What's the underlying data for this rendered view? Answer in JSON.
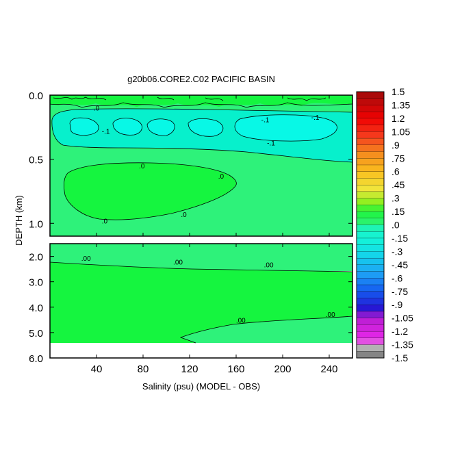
{
  "chart_data": {
    "type": "heatmap",
    "title": "g20b06.CORE2.C02 PACIFIC BASIN",
    "xlabel": "Salinity (psu) (MODEL - OBS)",
    "ylabel": "DEPTH (km)",
    "x_ticks": [
      "40",
      "80",
      "120",
      "160",
      "200",
      "240"
    ],
    "x_tick_values": [
      40,
      80,
      120,
      160,
      200,
      240
    ],
    "xlim": [
      0,
      260
    ],
    "upper_panel": {
      "ylim": [
        0.0,
        1.1
      ],
      "y_ticks": [
        "0.0",
        "0.5",
        "1.0"
      ],
      "y_tick_values": [
        0.0,
        0.5,
        1.0
      ],
      "contour_labels": [
        {
          "text": ".0",
          "x": 40,
          "y": 0.1
        },
        {
          "text": "-.1",
          "x": 48,
          "y": 0.28
        },
        {
          "text": "-.1",
          "x": 185,
          "y": 0.19
        },
        {
          "text": "-.1",
          "x": 228,
          "y": 0.17
        },
        {
          "text": "-.1",
          "x": 190,
          "y": 0.37
        },
        {
          "text": ".0",
          "x": 79,
          "y": 0.55
        },
        {
          "text": ".0",
          "x": 147,
          "y": 0.63
        },
        {
          "text": ".0",
          "x": 47,
          "y": 0.98
        },
        {
          "text": ".0",
          "x": 115,
          "y": 0.93
        }
      ]
    },
    "lower_panel": {
      "ylim": [
        1.5,
        6.0
      ],
      "y_ticks": [
        "2.0",
        "3.0",
        "4.0",
        "5.0",
        "6.0"
      ],
      "y_tick_values": [
        2.0,
        3.0,
        4.0,
        5.0,
        6.0
      ],
      "bottom_depth": 5.35,
      "contour_labels": [
        {
          "text": ".00",
          "x": 31,
          "y": 2.06
        },
        {
          "text": ".00",
          "x": 110,
          "y": 2.22
        },
        {
          "text": ".00",
          "x": 188,
          "y": 2.32
        },
        {
          "text": ".00",
          "x": 164,
          "y": 4.5
        },
        {
          "text": ".00",
          "x": 241,
          "y": 4.27
        }
      ]
    },
    "colorbar": {
      "labels": [
        "1.5",
        "1.35",
        "1.2",
        "1.05",
        ".9",
        ".75",
        ".6",
        ".45",
        ".3",
        ".15",
        ".0",
        "-.15",
        "-.3",
        "-.45",
        "-.6",
        "-.75",
        "-.9",
        "-1.05",
        "-1.2",
        "-1.35",
        "-1.5"
      ],
      "min": -1.5,
      "max": 1.5,
      "step": 0.075
    },
    "colors": {
      "field_zero": "#2ef27a",
      "field_positive_small": "#15f53f",
      "field_negative_small": "#07f0cc",
      "contour_line": "#000000"
    }
  }
}
